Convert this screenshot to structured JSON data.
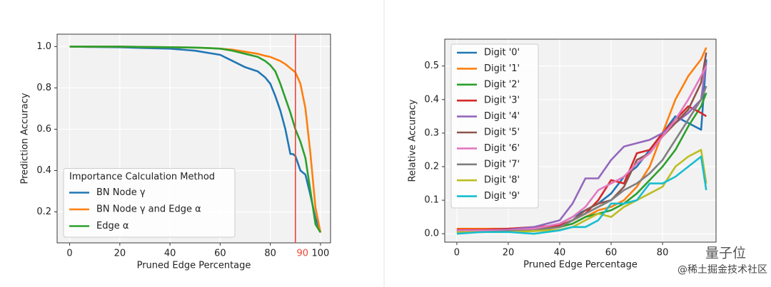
{
  "chart_data": [
    {
      "type": "line",
      "xlabel": "Pruned Edge Percentage",
      "ylabel": "Prediction Accuracy",
      "x": [
        0,
        10,
        20,
        30,
        40,
        50,
        55,
        60,
        65,
        70,
        75,
        78,
        80,
        82,
        84,
        86,
        88,
        89,
        90,
        92,
        94,
        96,
        98,
        100
      ],
      "xlim": [
        -5,
        104
      ],
      "ylim": [
        0.05,
        1.06
      ],
      "xticks": [
        0,
        20,
        40,
        60,
        80,
        100
      ],
      "yticks": [
        0.2,
        0.4,
        0.6,
        0.8,
        {
          "value": 1.0,
          "label": "1.0"
        }
      ],
      "grid": true,
      "legend": "lower left",
      "legend_title": "Importance Calculation Method",
      "vline": {
        "x": 90,
        "label": "90",
        "color": "#e8483b"
      },
      "series": [
        {
          "name": "BN Node γ",
          "color": "#1f77b4",
          "values": [
            1.0,
            0.998,
            0.997,
            0.993,
            0.99,
            0.98,
            0.97,
            0.96,
            0.93,
            0.9,
            0.88,
            0.85,
            0.82,
            0.76,
            0.69,
            0.6,
            0.48,
            0.48,
            0.47,
            0.4,
            0.38,
            0.28,
            0.17,
            0.1
          ]
        },
        {
          "name": "BN Node γ and Edge α",
          "color": "#ff7f0e",
          "values": [
            1.0,
            1.0,
            1.0,
            0.998,
            0.997,
            0.995,
            0.993,
            0.99,
            0.985,
            0.975,
            0.965,
            0.955,
            0.95,
            0.94,
            0.93,
            0.915,
            0.895,
            0.885,
            0.875,
            0.82,
            0.7,
            0.48,
            0.22,
            0.1
          ]
        },
        {
          "name": "Edge α",
          "color": "#2ca02c",
          "values": [
            1.0,
            1.0,
            1.0,
            0.998,
            0.997,
            0.995,
            0.993,
            0.99,
            0.98,
            0.965,
            0.95,
            0.93,
            0.91,
            0.88,
            0.82,
            0.75,
            0.68,
            0.64,
            0.6,
            0.54,
            0.46,
            0.3,
            0.14,
            0.1
          ]
        }
      ]
    },
    {
      "type": "line",
      "xlabel": "Pruned Edge Percentage",
      "ylabel": "Relative Accuracy",
      "x": [
        0,
        10,
        20,
        30,
        40,
        45,
        50,
        55,
        60,
        65,
        70,
        75,
        80,
        85,
        90,
        95,
        97
      ],
      "xlim": [
        -4.7,
        100.8
      ],
      "ylim": [
        -0.025,
        0.58
      ],
      "xticks": [
        0,
        20,
        40,
        60,
        80
      ],
      "yticks": [
        {
          "value": 0.0,
          "label": "0.0"
        },
        0.1,
        0.2,
        0.3,
        0.4,
        0.5
      ],
      "grid": true,
      "legend": "upper left",
      "series": [
        {
          "name": "Digit '0'",
          "color": "#1f77b4",
          "values": [
            0.01,
            0.01,
            0.012,
            0.015,
            0.03,
            0.05,
            0.07,
            0.09,
            0.12,
            0.17,
            0.2,
            0.25,
            0.3,
            0.35,
            0.33,
            0.31,
            0.52
          ]
        },
        {
          "name": "Digit '1'",
          "color": "#ff7f0e",
          "values": [
            0.015,
            0.015,
            0.015,
            0.018,
            0.02,
            0.03,
            0.05,
            0.07,
            0.08,
            0.1,
            0.14,
            0.2,
            0.3,
            0.4,
            0.47,
            0.52,
            0.555
          ]
        },
        {
          "name": "Digit '2'",
          "color": "#2ca02c",
          "values": [
            0.01,
            0.01,
            0.01,
            0.012,
            0.02,
            0.03,
            0.05,
            0.06,
            0.07,
            0.09,
            0.12,
            0.16,
            0.2,
            0.25,
            0.32,
            0.38,
            0.42
          ]
        },
        {
          "name": "Digit '3'",
          "color": "#d62728",
          "values": [
            0.012,
            0.012,
            0.015,
            0.02,
            0.025,
            0.04,
            0.06,
            0.1,
            0.16,
            0.15,
            0.24,
            0.25,
            0.3,
            0.34,
            0.38,
            0.36,
            0.35
          ]
        },
        {
          "name": "Digit '4'",
          "color": "#9467bd",
          "values": [
            0.01,
            0.01,
            0.012,
            0.02,
            0.04,
            0.09,
            0.165,
            0.165,
            0.22,
            0.26,
            0.27,
            0.28,
            0.3,
            0.33,
            0.36,
            0.4,
            0.51
          ]
        },
        {
          "name": "Digit '5'",
          "color": "#8c564b",
          "values": [
            0.005,
            0.005,
            0.008,
            0.012,
            0.02,
            0.04,
            0.07,
            0.09,
            0.1,
            0.14,
            0.22,
            0.24,
            0.29,
            0.33,
            0.37,
            0.45,
            0.54
          ]
        },
        {
          "name": "Digit '6'",
          "color": "#e377c2",
          "values": [
            0.01,
            0.01,
            0.01,
            0.015,
            0.03,
            0.05,
            0.08,
            0.13,
            0.15,
            0.17,
            0.21,
            0.24,
            0.29,
            0.34,
            0.4,
            0.47,
            0.5
          ]
        },
        {
          "name": "Digit '7'",
          "color": "#7f7f7f",
          "values": [
            0.005,
            0.005,
            0.008,
            0.01,
            0.02,
            0.04,
            0.06,
            0.08,
            0.1,
            0.13,
            0.15,
            0.18,
            0.22,
            0.28,
            0.34,
            0.4,
            0.44
          ]
        },
        {
          "name": "Digit '8'",
          "color": "#bcbd22",
          "values": [
            0.005,
            0.005,
            0.005,
            0.008,
            0.012,
            0.02,
            0.04,
            0.06,
            0.05,
            0.08,
            0.1,
            0.12,
            0.14,
            0.2,
            0.23,
            0.25,
            0.15
          ]
        },
        {
          "name": "Digit '9'",
          "color": "#17becf",
          "values": [
            0,
            0.005,
            0.005,
            0,
            0.01,
            0.02,
            0.02,
            0.04,
            0.09,
            0.09,
            0.1,
            0.15,
            0.15,
            0.17,
            0.2,
            0.23,
            0.13
          ]
        }
      ]
    }
  ],
  "watermark": [
    "量子位",
    "@稀土掘金技术社区"
  ]
}
